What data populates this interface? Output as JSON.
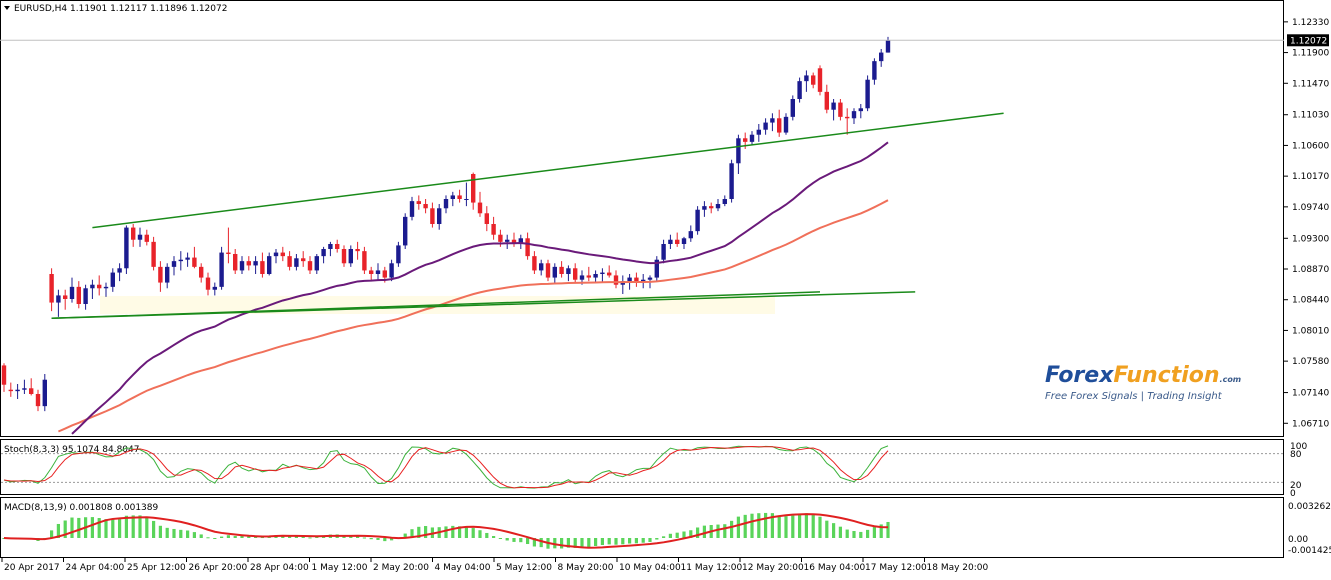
{
  "header": {
    "symbol_label": "EURUSD,H4",
    "ohlc": "1.11901 1.12117 1.11896 1.12072",
    "current_price": "1.12072"
  },
  "colors": {
    "bull": "#1b1b8f",
    "bear": "#e8232a",
    "trendline": "#1a8a1a",
    "ma_fast": "#6a1a7a",
    "ma_slow": "#f0705a",
    "stoch_main": "#3cb33c",
    "stoch_signal": "#e82020",
    "macd_hist": "#5ad45a",
    "macd_signal": "#e02020",
    "price_tag_bg": "#000000"
  },
  "watermark": {
    "brand_a": "Forex",
    "brand_b": "Function",
    "brand_com": ".com",
    "tagline": "Free Forex Signals | Trading Insight"
  },
  "stoch": {
    "label": "Stoch(8,3,3) 95.1074 84.8047",
    "levels": [
      "100",
      "80",
      "20",
      "0"
    ]
  },
  "macd": {
    "label": "MACD(8,13,9) 0.001808 0.001389",
    "levels": [
      "0.003262",
      "0.00",
      "-0.001425"
    ]
  },
  "chart_data": {
    "type": "candlestick",
    "symbol": "EURUSD",
    "timeframe": "H4",
    "price_axis": {
      "ticks": [
        "1.12330",
        "1.11900",
        "1.11470",
        "1.11030",
        "1.10600",
        "1.10170",
        "1.09740",
        "1.09300",
        "1.08870",
        "1.08440",
        "1.08010",
        "1.07580",
        "1.07140",
        "1.06710"
      ],
      "ylim": [
        1.0656,
        1.1258
      ]
    },
    "time_axis": {
      "labels": [
        "20 Apr 2017",
        "24 Apr 04:00",
        "25 Apr 12:00",
        "26 Apr 20:00",
        "28 Apr 04:00",
        "1 May 12:00",
        "2 May 20:00",
        "4 May 04:00",
        "5 May 12:00",
        "8 May 20:00",
        "10 May 04:00",
        "11 May 12:00",
        "12 May 20:00",
        "16 May 04:00",
        "17 May 12:00",
        "18 May 20:00"
      ]
    },
    "candles": [
      [
        1.0752,
        1.0755,
        1.0715,
        1.0725
      ],
      [
        1.0718,
        1.0728,
        1.0708,
        1.0716
      ],
      [
        1.0716,
        1.0726,
        1.0705,
        1.0718
      ],
      [
        1.0718,
        1.0732,
        1.0712,
        1.072
      ],
      [
        1.072,
        1.0734,
        1.071,
        1.0712
      ],
      [
        1.0712,
        1.0718,
        1.0688,
        1.0695
      ],
      [
        1.0695,
        1.074,
        1.0688,
        1.0732
      ],
      [
        1.088,
        1.0888,
        1.0828,
        1.084
      ],
      [
        1.084,
        1.0858,
        1.082,
        1.085
      ],
      [
        1.085,
        1.0858,
        1.083,
        1.0845
      ],
      [
        1.0845,
        1.0875,
        1.084,
        1.0862
      ],
      [
        1.0862,
        1.087,
        1.0832,
        1.0838
      ],
      [
        1.0838,
        1.0865,
        1.083,
        1.086
      ],
      [
        1.086,
        1.0872,
        1.0845,
        1.0865
      ],
      [
        1.0865,
        1.0878,
        1.085,
        1.086
      ],
      [
        1.086,
        1.0868,
        1.0848,
        1.0862
      ],
      [
        1.0862,
        1.0888,
        1.0855,
        1.0882
      ],
      [
        1.0882,
        1.0895,
        1.087,
        1.0888
      ],
      [
        1.0888,
        1.0948,
        1.088,
        1.0945
      ],
      [
        1.0945,
        1.095,
        1.0918,
        1.0928
      ],
      [
        1.0928,
        1.0945,
        1.0918,
        1.0935
      ],
      [
        1.0935,
        1.0942,
        1.092,
        1.0925
      ],
      [
        1.0925,
        1.0932,
        1.0885,
        1.089
      ],
      [
        1.089,
        1.0898,
        1.0855,
        1.0868
      ],
      [
        1.0868,
        1.0895,
        1.086,
        1.089
      ],
      [
        1.089,
        1.0905,
        1.0878,
        1.0898
      ],
      [
        1.0898,
        1.0912,
        1.0885,
        1.09
      ],
      [
        1.09,
        1.091,
        1.089,
        1.0903
      ],
      [
        1.0903,
        1.0918,
        1.0888,
        1.089
      ],
      [
        1.089,
        1.0895,
        1.0868,
        1.0875
      ],
      [
        1.0875,
        1.0882,
        1.085,
        1.0858
      ],
      [
        1.0858,
        1.0868,
        1.085,
        1.0862
      ],
      [
        1.0862,
        1.0918,
        1.0858,
        1.091
      ],
      [
        1.091,
        1.0945,
        1.0895,
        1.0908
      ],
      [
        1.0908,
        1.0915,
        1.088,
        1.0885
      ],
      [
        1.0885,
        1.0905,
        1.088,
        1.0898
      ],
      [
        1.0898,
        1.0905,
        1.0885,
        1.0892
      ],
      [
        1.0892,
        1.0905,
        1.088,
        1.0898
      ],
      [
        1.0898,
        1.091,
        1.0875,
        1.088
      ],
      [
        1.088,
        1.091,
        1.0878,
        1.0905
      ],
      [
        1.0905,
        1.0915,
        1.0895,
        1.091
      ],
      [
        1.091,
        1.0918,
        1.0898,
        1.0905
      ],
      [
        1.0905,
        1.0912,
        1.0885,
        1.089
      ],
      [
        1.089,
        1.0908,
        1.0885,
        1.0902
      ],
      [
        1.0902,
        1.0912,
        1.089,
        1.0898
      ],
      [
        1.0898,
        1.0905,
        1.088,
        1.0885
      ],
      [
        1.0885,
        1.0908,
        1.088,
        1.0905
      ],
      [
        1.0905,
        1.0918,
        1.0895,
        1.0915
      ],
      [
        1.0915,
        1.0925,
        1.0905,
        1.0922
      ],
      [
        1.0922,
        1.0928,
        1.091,
        1.0915
      ],
      [
        1.0915,
        1.092,
        1.089,
        1.0895
      ],
      [
        1.0895,
        1.092,
        1.089,
        1.0915
      ],
      [
        1.0915,
        1.0925,
        1.09,
        1.0912
      ],
      [
        1.0912,
        1.0918,
        1.088,
        1.0885
      ],
      [
        1.0885,
        1.089,
        1.087,
        1.088
      ],
      [
        1.088,
        1.0895,
        1.0872,
        1.0885
      ],
      [
        1.0885,
        1.089,
        1.0868,
        1.0875
      ],
      [
        1.0875,
        1.09,
        1.087,
        1.0895
      ],
      [
        1.0895,
        1.0925,
        1.089,
        1.092
      ],
      [
        1.092,
        1.0965,
        1.0915,
        1.096
      ],
      [
        1.096,
        1.0988,
        1.0955,
        1.0982
      ],
      [
        1.0982,
        1.099,
        1.097,
        1.0978
      ],
      [
        1.0978,
        1.0985,
        1.0965,
        1.0972
      ],
      [
        1.0972,
        1.098,
        1.0945,
        1.095
      ],
      [
        1.095,
        1.0978,
        1.0942,
        1.0972
      ],
      [
        1.0972,
        1.099,
        1.0965,
        1.0985
      ],
      [
        1.0985,
        1.0995,
        1.0975,
        1.099
      ],
      [
        1.099,
        1.0998,
        1.098,
        1.0985
      ],
      [
        1.0985,
        1.1008,
        1.0975,
        1.0985
      ],
      [
        1.102,
        1.1022,
        1.097,
        1.098
      ],
      [
        1.098,
        1.0995,
        1.096,
        1.0965
      ],
      [
        1.0965,
        1.0975,
        1.094,
        1.095
      ],
      [
        1.095,
        1.096,
        1.0928,
        1.0935
      ],
      [
        1.0935,
        1.0942,
        1.0918,
        1.0925
      ],
      [
        1.0925,
        1.0935,
        1.0915,
        1.0928
      ],
      [
        1.0928,
        1.0938,
        1.0918,
        1.0922
      ],
      [
        1.0922,
        1.0935,
        1.0915,
        1.093
      ],
      [
        1.093,
        1.0938,
        1.09,
        1.0905
      ],
      [
        1.0905,
        1.0912,
        1.088,
        1.0885
      ],
      [
        1.0885,
        1.09,
        1.0878,
        1.0895
      ],
      [
        1.0895,
        1.09,
        1.087,
        1.0875
      ],
      [
        1.0875,
        1.0895,
        1.0868,
        1.089
      ],
      [
        1.089,
        1.0898,
        1.0875,
        1.088
      ],
      [
        1.088,
        1.0892,
        1.087,
        1.0888
      ],
      [
        1.0888,
        1.0895,
        1.0868,
        1.0872
      ],
      [
        1.0872,
        1.0885,
        1.0865,
        1.0878
      ],
      [
        1.0878,
        1.089,
        1.087,
        1.0875
      ],
      [
        1.0875,
        1.0885,
        1.0868,
        1.088
      ],
      [
        1.088,
        1.0888,
        1.0868,
        1.0882
      ],
      [
        1.0882,
        1.0892,
        1.0875,
        1.0878
      ],
      [
        1.0878,
        1.0885,
        1.086,
        1.0865
      ],
      [
        1.0865,
        1.0878,
        1.0852,
        1.087
      ],
      [
        1.087,
        1.088,
        1.0858,
        1.0875
      ],
      [
        1.0875,
        1.0882,
        1.0862,
        1.0868
      ],
      [
        1.0868,
        1.088,
        1.086,
        1.0872
      ],
      [
        1.0872,
        1.0878,
        1.086,
        1.0875
      ],
      [
        1.0875,
        1.0905,
        1.087,
        1.09
      ],
      [
        1.09,
        1.0928,
        1.0895,
        1.0922
      ],
      [
        1.0922,
        1.0935,
        1.0915,
        1.0928
      ],
      [
        1.0928,
        1.0938,
        1.0918,
        1.0922
      ],
      [
        1.0922,
        1.0932,
        1.0915,
        1.093
      ],
      [
        1.093,
        1.0948,
        1.0925,
        1.094
      ],
      [
        1.094,
        1.0975,
        1.0935,
        1.097
      ],
      [
        1.097,
        1.0982,
        1.096,
        1.0975
      ],
      [
        1.0975,
        1.098,
        1.0965,
        1.0972
      ],
      [
        1.0972,
        1.0985,
        1.0968,
        1.0978
      ],
      [
        1.0978,
        1.099,
        1.0975,
        1.0985
      ],
      [
        1.0985,
        1.104,
        1.098,
        1.1035
      ],
      [
        1.1035,
        1.1075,
        1.102,
        1.107
      ],
      [
        1.107,
        1.1078,
        1.1055,
        1.1065
      ],
      [
        1.1065,
        1.108,
        1.106,
        1.1075
      ],
      [
        1.1075,
        1.109,
        1.1065,
        1.1082
      ],
      [
        1.1082,
        1.1098,
        1.1075,
        1.1092
      ],
      [
        1.1092,
        1.1105,
        1.108,
        1.1098
      ],
      [
        1.1098,
        1.111,
        1.1072,
        1.1078
      ],
      [
        1.1078,
        1.1105,
        1.1075,
        1.11
      ],
      [
        1.11,
        1.113,
        1.1095,
        1.1125
      ],
      [
        1.1125,
        1.1155,
        1.112,
        1.115
      ],
      [
        1.115,
        1.1165,
        1.1135,
        1.1158
      ],
      [
        1.1158,
        1.1162,
        1.114,
        1.1145
      ],
      [
        1.1168,
        1.1172,
        1.113,
        1.1135
      ],
      [
        1.1135,
        1.1145,
        1.1105,
        1.111
      ],
      [
        1.111,
        1.1125,
        1.1095,
        1.112
      ],
      [
        1.112,
        1.1125,
        1.1095,
        1.11
      ],
      [
        1.11,
        1.1112,
        1.1075,
        1.1098
      ],
      [
        1.1098,
        1.1112,
        1.109,
        1.1108
      ],
      [
        1.1108,
        1.1118,
        1.1098,
        1.1112
      ],
      [
        1.1112,
        1.1158,
        1.1108,
        1.1152
      ],
      [
        1.1152,
        1.1182,
        1.1145,
        1.1178
      ],
      [
        1.1178,
        1.1195,
        1.117,
        1.119
      ],
      [
        1.119,
        1.1212,
        1.119,
        1.1207
      ]
    ],
    "trendlines": [
      {
        "from": [
          7,
          1.0818
        ],
        "to": [
          120,
          1.0855
        ]
      },
      {
        "from": [
          13,
          1.0945
        ],
        "to": [
          147,
          1.1105
        ]
      },
      {
        "from": [
          7,
          1.0818
        ],
        "to": [
          134,
          1.0855
        ]
      }
    ]
  }
}
